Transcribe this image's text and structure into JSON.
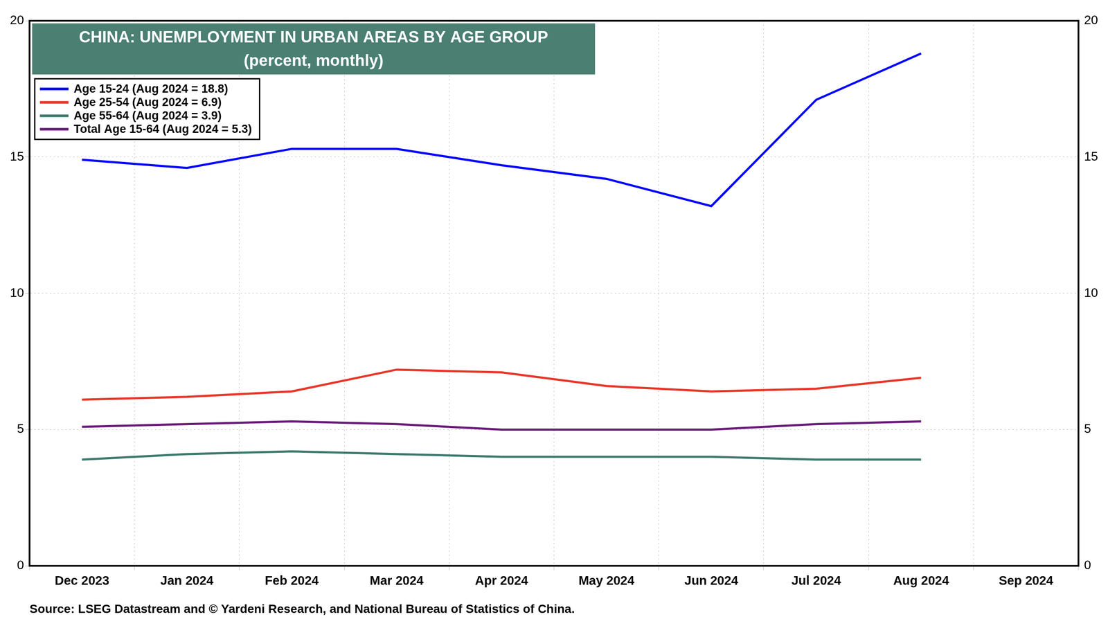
{
  "chart_data": {
    "type": "line",
    "title": "CHINA: UNEMPLOYMENT IN URBAN AREAS BY AGE GROUP",
    "subtitle": "(percent, monthly)",
    "source": "Source: LSEG Datastream and © Yardeni Research, and National Bureau of Statistics of China.",
    "categories": [
      "Dec 2023",
      "Jan 2024",
      "Feb 2024",
      "Mar 2024",
      "Apr 2024",
      "May 2024",
      "Jun 2024",
      "Jul 2024",
      "Aug 2024",
      "Sep 2024"
    ],
    "series": [
      {
        "name": "Age 15-24 (Aug 2024 = 18.8)",
        "color": "#0000ff",
        "values": [
          14.9,
          14.6,
          15.3,
          15.3,
          14.7,
          14.2,
          13.2,
          17.1,
          18.8,
          null
        ]
      },
      {
        "name": "Age 25-54 (Aug 2024 = 6.9)",
        "color": "#e8372a",
        "values": [
          6.1,
          6.2,
          6.4,
          7.2,
          7.1,
          6.6,
          6.4,
          6.5,
          6.9,
          null
        ]
      },
      {
        "name": "Age 55-64 (Aug 2024 = 3.9)",
        "color": "#3d7a6e",
        "values": [
          3.9,
          4.1,
          4.2,
          4.1,
          4.0,
          4.0,
          4.0,
          3.9,
          3.9,
          null
        ]
      },
      {
        "name": "Total Age 15-64 (Aug 2024 = 5.3)",
        "color": "#6a1b7a",
        "values": [
          5.1,
          5.2,
          5.3,
          5.2,
          5.0,
          5.0,
          5.0,
          5.2,
          5.3,
          null
        ]
      }
    ],
    "ylim": [
      0,
      20
    ],
    "yticks": [
      0,
      5,
      10,
      15,
      20
    ],
    "y2lim": [
      0,
      20
    ],
    "y2ticks": [
      0,
      5,
      10,
      15,
      20
    ],
    "grid": true,
    "legend": "upper left"
  }
}
